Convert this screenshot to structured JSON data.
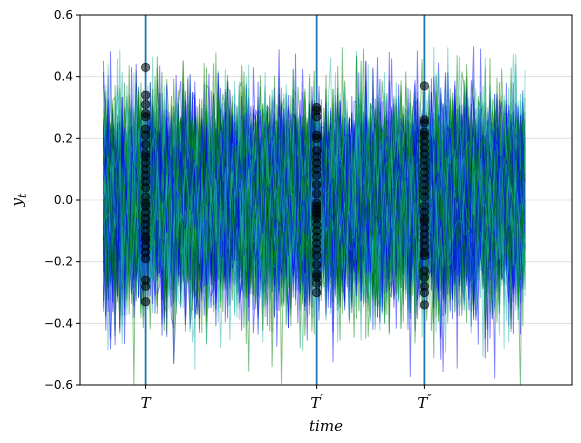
{
  "chart_data": {
    "type": "line",
    "title": "",
    "xlabel": "time",
    "ylabel_main": "y",
    "ylabel_sub": "t",
    "ylim": [
      -0.6,
      0.6
    ],
    "yticks": [
      -0.6,
      -0.4,
      -0.2,
      0.0,
      0.2,
      0.4,
      0.6
    ],
    "ytick_labels": [
      "−0.6",
      "−0.4",
      "−0.2",
      "0.0",
      "0.2",
      "0.4",
      "0.6"
    ],
    "xlim": [
      -10,
      200
    ],
    "grid": "horizontal",
    "x_start": 0,
    "x_end": 180,
    "n_series": 150,
    "series_std": 0.15,
    "series_colors": [
      "#0000ff",
      "#008000",
      "#20b2aa"
    ],
    "series_opacity": 0.5,
    "vlines": [
      {
        "label_main": "T",
        "label_sup": "",
        "x": 18
      },
      {
        "label_main": "T",
        "label_sup": "′",
        "x": 91
      },
      {
        "label_main": "T",
        "label_sup": "″",
        "x": 137
      }
    ],
    "vline_color": "#1f77b4",
    "markers": [
      {
        "x": 18,
        "values": [
          0.43,
          0.34,
          0.31,
          0.28,
          0.27,
          0.23,
          0.21,
          0.18,
          0.15,
          0.14,
          0.12,
          0.1,
          0.08,
          0.06,
          0.04,
          0.01,
          -0.01,
          -0.02,
          -0.04,
          -0.06,
          -0.08,
          -0.1,
          -0.12,
          -0.13,
          -0.15,
          -0.17,
          -0.19,
          -0.26,
          -0.28,
          -0.33
        ]
      },
      {
        "x": 91,
        "values": [
          0.3,
          0.29,
          0.27,
          0.21,
          0.2,
          0.16,
          0.14,
          0.12,
          0.1,
          0.08,
          0.05,
          0.02,
          -0.01,
          -0.02,
          -0.03,
          -0.04,
          -0.05,
          -0.06,
          -0.08,
          -0.1,
          -0.12,
          -0.14,
          -0.16,
          -0.18,
          -0.21,
          -0.24,
          -0.25,
          -0.27,
          -0.3
        ]
      },
      {
        "x": 137,
        "values": [
          0.37,
          0.26,
          0.25,
          0.22,
          0.21,
          0.19,
          0.17,
          0.15,
          0.13,
          0.11,
          0.09,
          0.07,
          0.05,
          0.03,
          0.01,
          -0.02,
          -0.04,
          -0.06,
          -0.07,
          -0.09,
          -0.11,
          -0.13,
          -0.15,
          -0.17,
          -0.18,
          -0.23,
          -0.25,
          -0.28,
          -0.3,
          -0.34
        ]
      }
    ],
    "marker_color": "#000000",
    "marker_opacity": 0.55
  }
}
